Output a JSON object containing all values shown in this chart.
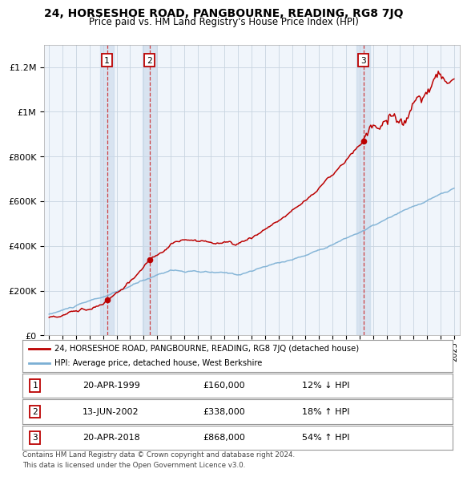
{
  "title": "24, HORSESHOE ROAD, PANGBOURNE, READING, RG8 7JQ",
  "subtitle": "Price paid vs. HM Land Registry's House Price Index (HPI)",
  "sale_label": "24, HORSESHOE ROAD, PANGBOURNE, READING, RG8 7JQ (detached house)",
  "hpi_label": "HPI: Average price, detached house, West Berkshire",
  "footnote1": "Contains HM Land Registry data © Crown copyright and database right 2024.",
  "footnote2": "This data is licensed under the Open Government Licence v3.0.",
  "sales": [
    {
      "num": 1,
      "date": "20-APR-1999",
      "year": 1999.29,
      "price": 160000,
      "hpi_diff": "12% ↓ HPI"
    },
    {
      "num": 2,
      "date": "13-JUN-2002",
      "year": 2002.45,
      "price": 338000,
      "hpi_diff": "18% ↑ HPI"
    },
    {
      "num": 3,
      "date": "20-APR-2018",
      "year": 2018.29,
      "price": 868000,
      "hpi_diff": "54% ↑ HPI"
    }
  ],
  "ylim_max": 1300000,
  "xlim_start": 1994.6,
  "xlim_end": 2025.4,
  "red_color": "#bb0000",
  "blue_color": "#7bafd4",
  "bg_color": "#e8f0f8",
  "plot_bg": "#f0f5fb",
  "grid_color": "#c8d4e0",
  "vline_color": "#cc2222",
  "span_color": "#c8d8ea"
}
